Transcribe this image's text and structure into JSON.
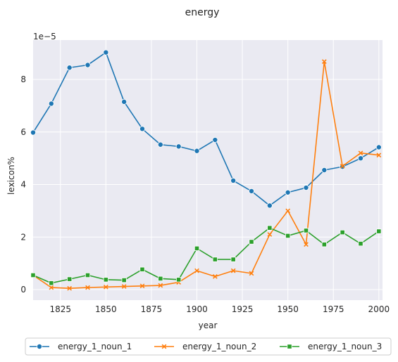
{
  "chart_data": {
    "type": "line",
    "title": "energy",
    "xlabel": "year",
    "ylabel": "lexicon%",
    "y_multiplier_label": "1e−5",
    "xlim": [
      1810,
      2002
    ],
    "ylim": [
      -0.4,
      9.5
    ],
    "x_ticks": [
      1825,
      1850,
      1875,
      1900,
      1925,
      1950,
      1975,
      2000
    ],
    "y_ticks": [
      0,
      2,
      4,
      6,
      8
    ],
    "grid": true,
    "legend_position": "bottom-center",
    "x": [
      1810,
      1820,
      1830,
      1840,
      1850,
      1860,
      1870,
      1880,
      1890,
      1900,
      1910,
      1920,
      1930,
      1940,
      1950,
      1960,
      1970,
      1980,
      1990,
      2000
    ],
    "series": [
      {
        "name": "energy_1_noun_1",
        "color": "#1f77b4",
        "marker": "circle",
        "values": [
          5.98,
          7.08,
          8.45,
          8.55,
          9.03,
          7.15,
          6.12,
          5.52,
          5.45,
          5.28,
          5.7,
          4.15,
          3.75,
          3.2,
          3.7,
          3.88,
          4.55,
          4.68,
          5.0,
          5.42
        ]
      },
      {
        "name": "energy_1_noun_2",
        "color": "#ff7f0e",
        "marker": "x",
        "values": [
          0.55,
          0.08,
          0.05,
          0.08,
          0.1,
          0.12,
          0.14,
          0.16,
          0.28,
          0.72,
          0.5,
          0.72,
          0.62,
          2.1,
          3.0,
          1.72,
          8.68,
          4.7,
          5.2,
          5.12
        ]
      },
      {
        "name": "energy_1_noun_3",
        "color": "#2ca02c",
        "marker": "square",
        "values": [
          0.55,
          0.25,
          0.4,
          0.55,
          0.38,
          0.36,
          0.77,
          0.42,
          0.38,
          1.57,
          1.15,
          1.15,
          1.82,
          2.35,
          2.05,
          2.25,
          1.72,
          2.18,
          1.75,
          2.22
        ]
      }
    ]
  }
}
